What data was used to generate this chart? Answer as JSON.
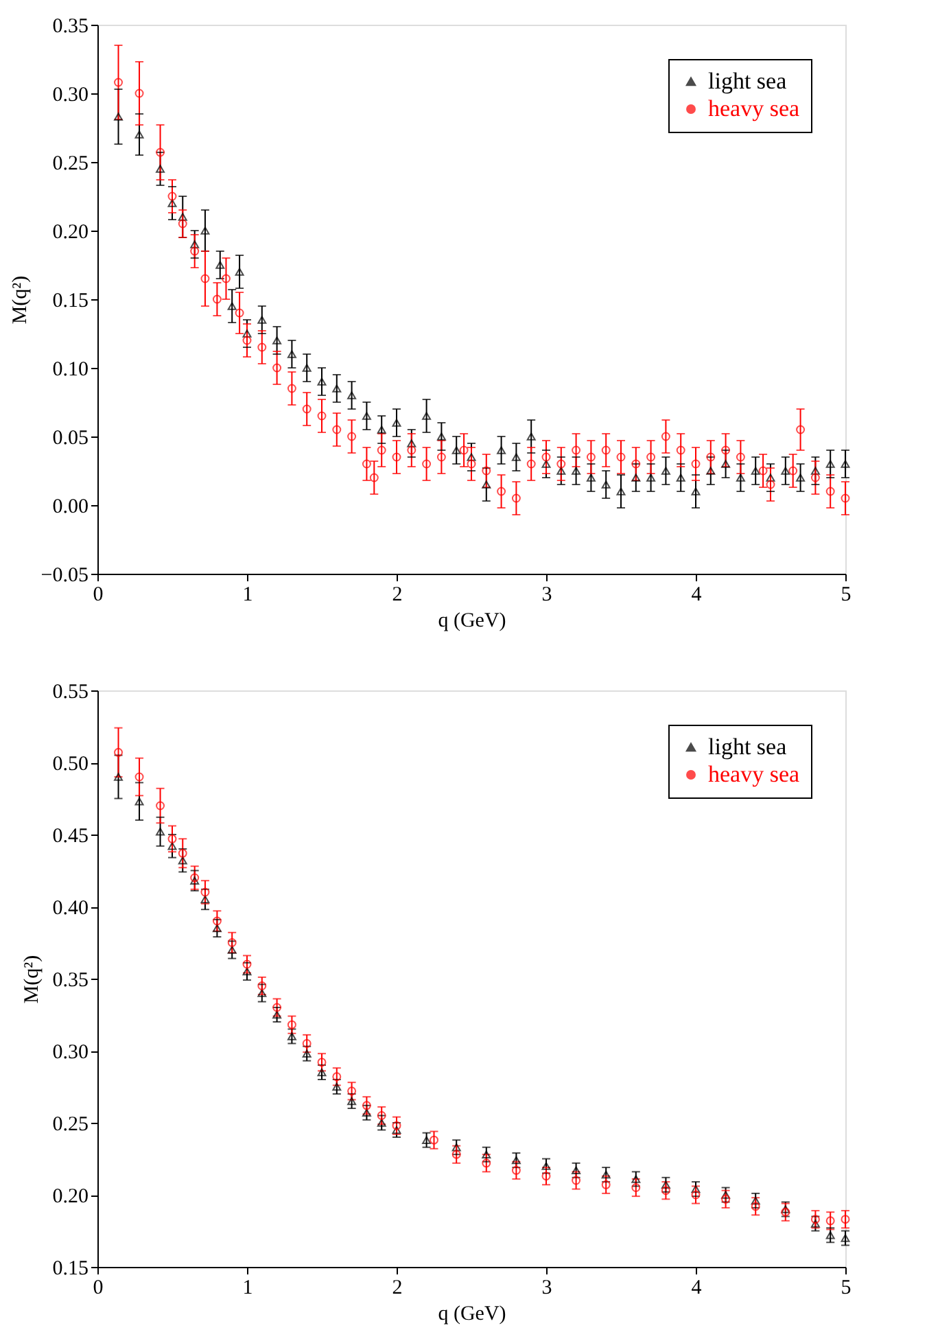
{
  "chart_data": [
    {
      "type": "scatter",
      "xlabel": "q (GeV)",
      "ylabel": "M(q²)",
      "xlim": [
        0,
        5
      ],
      "ylim": [
        -0.05,
        0.35
      ],
      "xticks": [
        0,
        1,
        2,
        3,
        4,
        5
      ],
      "yticks": [
        {
          "value": -0.05,
          "label": "−0.05"
        },
        {
          "value": 0,
          "label": "0.00"
        },
        {
          "value": 0.05,
          "label": "0.05"
        },
        {
          "value": 0.1,
          "label": "0.10"
        },
        {
          "value": 0.15,
          "label": "0.15"
        },
        {
          "value": 0.2,
          "label": "0.20"
        },
        {
          "value": 0.25,
          "label": "0.25"
        },
        {
          "value": 0.3,
          "label": "0.30"
        },
        {
          "value": 0.35,
          "label": "0.35"
        }
      ],
      "grid": false,
      "legend": "top right",
      "series": [
        {
          "name": "light sea",
          "color": "#000000",
          "marker": "triangle",
          "x": [
            0.14,
            0.28,
            0.42,
            0.5,
            0.57,
            0.65,
            0.72,
            0.82,
            0.9,
            0.95,
            1.0,
            1.1,
            1.2,
            1.3,
            1.4,
            1.5,
            1.6,
            1.7,
            1.8,
            1.9,
            2.0,
            2.1,
            2.2,
            2.3,
            2.4,
            2.5,
            2.6,
            2.7,
            2.8,
            2.9,
            3.0,
            3.1,
            3.2,
            3.3,
            3.4,
            3.5,
            3.6,
            3.7,
            3.8,
            3.9,
            4.0,
            4.1,
            4.2,
            4.3,
            4.4,
            4.5,
            4.6,
            4.7,
            4.8,
            4.9,
            5.0
          ],
          "values": [
            0.283,
            0.27,
            0.245,
            0.22,
            0.21,
            0.19,
            0.2,
            0.175,
            0.145,
            0.17,
            0.125,
            0.135,
            0.12,
            0.11,
            0.1,
            0.09,
            0.085,
            0.08,
            0.065,
            0.055,
            0.06,
            0.045,
            0.065,
            0.05,
            0.04,
            0.035,
            0.015,
            0.04,
            0.035,
            0.05,
            0.03,
            0.025,
            0.025,
            0.02,
            0.015,
            0.01,
            0.02,
            0.02,
            0.025,
            0.02,
            0.01,
            0.025,
            0.03,
            0.02,
            0.025,
            0.02,
            0.025,
            0.02,
            0.025,
            0.03,
            0.03
          ],
          "errors": [
            0.02,
            0.015,
            0.012,
            0.012,
            0.015,
            0.01,
            0.015,
            0.01,
            0.012,
            0.012,
            0.01,
            0.01,
            0.01,
            0.01,
            0.01,
            0.01,
            0.01,
            0.01,
            0.01,
            0.01,
            0.01,
            0.01,
            0.012,
            0.01,
            0.01,
            0.01,
            0.012,
            0.01,
            0.01,
            0.012,
            0.01,
            0.01,
            0.01,
            0.01,
            0.01,
            0.012,
            0.01,
            0.01,
            0.01,
            0.01,
            0.012,
            0.01,
            0.01,
            0.01,
            0.01,
            0.01,
            0.01,
            0.01,
            0.01,
            0.01,
            0.01
          ]
        },
        {
          "name": "heavy sea",
          "color": "#ff0000",
          "marker": "circle",
          "x": [
            0.14,
            0.28,
            0.42,
            0.5,
            0.57,
            0.65,
            0.72,
            0.8,
            0.86,
            0.95,
            1.0,
            1.1,
            1.2,
            1.3,
            1.4,
            1.5,
            1.6,
            1.7,
            1.8,
            1.85,
            1.9,
            2.0,
            2.1,
            2.2,
            2.3,
            2.45,
            2.5,
            2.6,
            2.7,
            2.8,
            2.9,
            3.0,
            3.1,
            3.2,
            3.3,
            3.4,
            3.5,
            3.6,
            3.7,
            3.8,
            3.9,
            4.0,
            4.1,
            4.2,
            4.3,
            4.45,
            4.5,
            4.65,
            4.7,
            4.8,
            4.9,
            5.0
          ],
          "values": [
            0.308,
            0.3,
            0.257,
            0.225,
            0.205,
            0.185,
            0.165,
            0.15,
            0.165,
            0.14,
            0.12,
            0.115,
            0.1,
            0.085,
            0.07,
            0.065,
            0.055,
            0.05,
            0.03,
            0.02,
            0.04,
            0.035,
            0.04,
            0.03,
            0.035,
            0.04,
            0.03,
            0.025,
            0.01,
            0.005,
            0.03,
            0.035,
            0.03,
            0.04,
            0.035,
            0.04,
            0.035,
            0.03,
            0.035,
            0.05,
            0.04,
            0.03,
            0.035,
            0.04,
            0.035,
            0.025,
            0.015,
            0.025,
            0.055,
            0.02,
            0.01,
            0.005
          ],
          "errors": [
            0.027,
            0.023,
            0.02,
            0.012,
            0.01,
            0.012,
            0.02,
            0.012,
            0.015,
            0.015,
            0.012,
            0.012,
            0.012,
            0.012,
            0.012,
            0.012,
            0.012,
            0.012,
            0.012,
            0.012,
            0.012,
            0.012,
            0.012,
            0.012,
            0.012,
            0.012,
            0.012,
            0.012,
            0.012,
            0.012,
            0.012,
            0.012,
            0.012,
            0.012,
            0.012,
            0.012,
            0.012,
            0.012,
            0.012,
            0.012,
            0.012,
            0.012,
            0.012,
            0.012,
            0.012,
            0.012,
            0.012,
            0.012,
            0.015,
            0.012,
            0.012,
            0.012
          ]
        }
      ]
    },
    {
      "type": "scatter",
      "xlabel": "q (GeV)",
      "ylabel": "M(q²)",
      "xlim": [
        0,
        5
      ],
      "ylim": [
        0.15,
        0.55
      ],
      "xticks": [
        0,
        1,
        2,
        3,
        4,
        5
      ],
      "yticks": [
        {
          "value": 0.15,
          "label": "0.15"
        },
        {
          "value": 0.2,
          "label": "0.20"
        },
        {
          "value": 0.25,
          "label": "0.25"
        },
        {
          "value": 0.3,
          "label": "0.30"
        },
        {
          "value": 0.35,
          "label": "0.35"
        },
        {
          "value": 0.4,
          "label": "0.40"
        },
        {
          "value": 0.45,
          "label": "0.45"
        },
        {
          "value": 0.5,
          "label": "0.50"
        },
        {
          "value": 0.55,
          "label": "0.55"
        }
      ],
      "grid": false,
      "legend": "top right",
      "series": [
        {
          "name": "light sea",
          "color": "#000000",
          "marker": "triangle",
          "x": [
            0.14,
            0.28,
            0.42,
            0.5,
            0.57,
            0.65,
            0.72,
            0.8,
            0.9,
            1.0,
            1.1,
            1.2,
            1.3,
            1.4,
            1.5,
            1.6,
            1.7,
            1.8,
            1.9,
            2.0,
            2.2,
            2.4,
            2.6,
            2.8,
            3.0,
            3.2,
            3.4,
            3.6,
            3.8,
            4.0,
            4.2,
            4.4,
            4.6,
            4.8,
            4.9,
            5.0
          ],
          "values": [
            0.49,
            0.473,
            0.452,
            0.442,
            0.432,
            0.418,
            0.405,
            0.385,
            0.37,
            0.355,
            0.34,
            0.325,
            0.31,
            0.298,
            0.285,
            0.275,
            0.265,
            0.257,
            0.25,
            0.245,
            0.238,
            0.233,
            0.228,
            0.224,
            0.22,
            0.217,
            0.214,
            0.211,
            0.207,
            0.204,
            0.2,
            0.196,
            0.19,
            0.18,
            0.172,
            0.17
          ],
          "errors": [
            0.015,
            0.013,
            0.01,
            0.008,
            0.008,
            0.007,
            0.007,
            0.006,
            0.006,
            0.006,
            0.006,
            0.005,
            0.005,
            0.005,
            0.005,
            0.005,
            0.005,
            0.005,
            0.005,
            0.005,
            0.005,
            0.005,
            0.005,
            0.005,
            0.005,
            0.005,
            0.005,
            0.005,
            0.005,
            0.005,
            0.005,
            0.005,
            0.005,
            0.005,
            0.005,
            0.005
          ]
        },
        {
          "name": "heavy sea",
          "color": "#ff0000",
          "marker": "circle",
          "x": [
            0.14,
            0.28,
            0.42,
            0.5,
            0.57,
            0.65,
            0.72,
            0.8,
            0.9,
            1.0,
            1.1,
            1.2,
            1.3,
            1.4,
            1.5,
            1.6,
            1.7,
            1.8,
            1.9,
            2.0,
            2.25,
            2.4,
            2.6,
            2.8,
            3.0,
            3.2,
            3.4,
            3.6,
            3.8,
            4.0,
            4.2,
            4.4,
            4.6,
            4.8,
            4.9,
            5.0
          ],
          "values": [
            0.507,
            0.49,
            0.47,
            0.447,
            0.437,
            0.42,
            0.41,
            0.39,
            0.375,
            0.36,
            0.345,
            0.33,
            0.318,
            0.305,
            0.292,
            0.282,
            0.272,
            0.262,
            0.255,
            0.248,
            0.238,
            0.228,
            0.222,
            0.217,
            0.213,
            0.21,
            0.207,
            0.205,
            0.203,
            0.2,
            0.197,
            0.192,
            0.188,
            0.183,
            0.182,
            0.183
          ],
          "errors": [
            0.017,
            0.013,
            0.012,
            0.009,
            0.01,
            0.008,
            0.008,
            0.007,
            0.007,
            0.006,
            0.006,
            0.006,
            0.006,
            0.006,
            0.006,
            0.006,
            0.006,
            0.006,
            0.006,
            0.006,
            0.006,
            0.006,
            0.006,
            0.006,
            0.006,
            0.006,
            0.006,
            0.006,
            0.006,
            0.006,
            0.006,
            0.006,
            0.006,
            0.006,
            0.006,
            0.006
          ]
        }
      ]
    }
  ]
}
